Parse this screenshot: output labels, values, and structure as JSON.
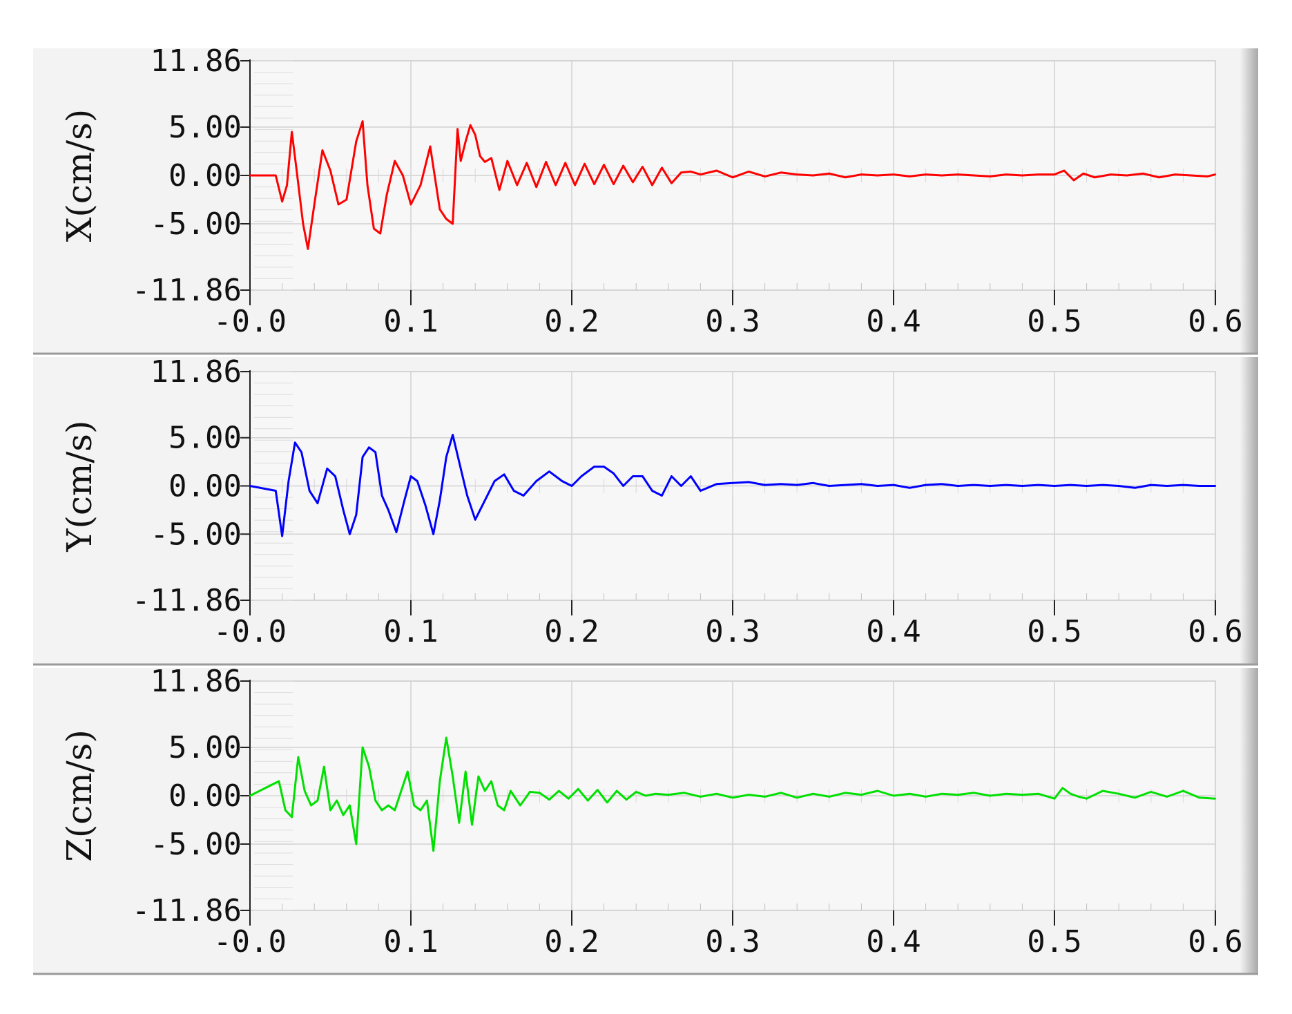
{
  "chart_data": [
    {
      "type": "line",
      "ylabel": "X(cm/s)",
      "color": "#ff0000",
      "xlim": [
        0.0,
        0.6
      ],
      "ylim": [
        -11.86,
        11.86
      ],
      "yticks": [
        11.86,
        5.0,
        0.0,
        -5.0,
        -11.86
      ],
      "ytick_labels": [
        "11.86",
        "5.00",
        "0.00",
        "-5.00",
        "-11.86"
      ],
      "xticks": [
        0.0,
        0.1,
        0.2,
        0.3,
        0.4,
        0.5,
        0.6
      ],
      "xtick_labels": [
        "-0.0",
        "0.1",
        "0.2",
        "0.3",
        "0.4",
        "0.5",
        "0.6"
      ],
      "grid": true,
      "x": [
        0,
        0.016,
        0.02,
        0.023,
        0.026,
        0.029,
        0.033,
        0.036,
        0.04,
        0.045,
        0.05,
        0.055,
        0.06,
        0.066,
        0.07,
        0.073,
        0.077,
        0.081,
        0.085,
        0.09,
        0.095,
        0.1,
        0.106,
        0.112,
        0.118,
        0.122,
        0.126,
        0.129,
        0.131,
        0.134,
        0.137,
        0.14,
        0.143,
        0.146,
        0.15,
        0.155,
        0.16,
        0.166,
        0.172,
        0.178,
        0.184,
        0.19,
        0.196,
        0.202,
        0.208,
        0.214,
        0.22,
        0.226,
        0.232,
        0.238,
        0.244,
        0.25,
        0.256,
        0.262,
        0.268,
        0.274,
        0.28,
        0.29,
        0.3,
        0.31,
        0.32,
        0.33,
        0.34,
        0.35,
        0.36,
        0.37,
        0.38,
        0.39,
        0.4,
        0.41,
        0.42,
        0.43,
        0.44,
        0.45,
        0.46,
        0.47,
        0.48,
        0.49,
        0.5,
        0.506,
        0.512,
        0.518,
        0.525,
        0.535,
        0.545,
        0.555,
        0.565,
        0.575,
        0.585,
        0.595,
        0.6
      ],
      "values": [
        0,
        0,
        -2.7,
        -1.0,
        4.5,
        0.5,
        -5.0,
        -7.6,
        -3.0,
        2.6,
        0.5,
        -3.0,
        -2.5,
        3.5,
        5.6,
        -1.0,
        -5.5,
        -6.0,
        -2.0,
        1.5,
        0.0,
        -3.0,
        -1.0,
        3.0,
        -3.5,
        -4.5,
        -5.0,
        4.8,
        1.5,
        3.5,
        5.2,
        4.2,
        2.0,
        1.4,
        1.8,
        -1.5,
        1.5,
        -1.0,
        1.3,
        -1.2,
        1.4,
        -1.0,
        1.3,
        -1.0,
        1.2,
        -0.9,
        1.1,
        -0.9,
        1.0,
        -0.7,
        0.9,
        -1.0,
        0.8,
        -0.8,
        0.3,
        0.4,
        0.1,
        0.5,
        -0.2,
        0.4,
        -0.1,
        0.3,
        0.1,
        0.0,
        0.2,
        -0.2,
        0.1,
        0.0,
        0.1,
        -0.1,
        0.1,
        0.0,
        0.1,
        0.0,
        -0.1,
        0.1,
        0.0,
        0.1,
        0.1,
        0.5,
        -0.5,
        0.2,
        -0.2,
        0.1,
        0.0,
        0.2,
        -0.2,
        0.1,
        0.0,
        -0.1,
        0.1
      ]
    },
    {
      "type": "line",
      "ylabel": "Y(cm/s)",
      "color": "#0000ff",
      "xlim": [
        0.0,
        0.6
      ],
      "ylim": [
        -11.86,
        11.86
      ],
      "yticks": [
        11.86,
        5.0,
        0.0,
        -5.0,
        -11.86
      ],
      "ytick_labels": [
        "11.86",
        "5.00",
        "0.00",
        "-5.00",
        "-11.86"
      ],
      "xticks": [
        0.0,
        0.1,
        0.2,
        0.3,
        0.4,
        0.5,
        0.6
      ],
      "xtick_labels": [
        "-0.0",
        "0.1",
        "0.2",
        "0.3",
        "0.4",
        "0.5",
        "0.6"
      ],
      "grid": true,
      "x": [
        0,
        0.016,
        0.02,
        0.024,
        0.028,
        0.032,
        0.037,
        0.042,
        0.048,
        0.053,
        0.058,
        0.062,
        0.066,
        0.07,
        0.074,
        0.078,
        0.082,
        0.086,
        0.091,
        0.096,
        0.1,
        0.104,
        0.109,
        0.114,
        0.118,
        0.122,
        0.126,
        0.13,
        0.135,
        0.14,
        0.146,
        0.152,
        0.158,
        0.164,
        0.17,
        0.178,
        0.186,
        0.194,
        0.2,
        0.206,
        0.214,
        0.22,
        0.226,
        0.232,
        0.238,
        0.244,
        0.25,
        0.256,
        0.262,
        0.268,
        0.274,
        0.28,
        0.29,
        0.3,
        0.31,
        0.32,
        0.33,
        0.34,
        0.35,
        0.36,
        0.37,
        0.38,
        0.39,
        0.4,
        0.41,
        0.42,
        0.43,
        0.44,
        0.45,
        0.46,
        0.47,
        0.48,
        0.49,
        0.5,
        0.51,
        0.52,
        0.53,
        0.54,
        0.55,
        0.56,
        0.57,
        0.58,
        0.59,
        0.6
      ],
      "values": [
        0,
        -0.5,
        -5.2,
        0.5,
        4.5,
        3.5,
        -0.5,
        -1.8,
        1.8,
        1.0,
        -2.5,
        -5.0,
        -3.0,
        3.0,
        4.0,
        3.5,
        -1.0,
        -2.5,
        -4.8,
        -1.5,
        1.0,
        0.5,
        -2.0,
        -5.0,
        -1.5,
        3.0,
        5.3,
        2.5,
        -1.0,
        -3.5,
        -1.5,
        0.5,
        1.2,
        -0.5,
        -1.0,
        0.5,
        1.5,
        0.5,
        0.0,
        1.0,
        2.0,
        2.0,
        1.3,
        0.0,
        1.0,
        1.0,
        -0.5,
        -1.0,
        1.0,
        0.0,
        1.0,
        -0.5,
        0.2,
        0.3,
        0.4,
        0.1,
        0.2,
        0.1,
        0.3,
        0.0,
        0.1,
        0.2,
        0.0,
        0.1,
        -0.2,
        0.1,
        0.2,
        0.0,
        0.1,
        0.0,
        0.1,
        0.0,
        0.1,
        0.0,
        0.1,
        0.0,
        0.1,
        0.0,
        -0.2,
        0.1,
        0.0,
        0.1,
        0.0,
        0.0
      ]
    },
    {
      "type": "line",
      "ylabel": "Z(cm/s)",
      "color": "#00e000",
      "xlim": [
        0.0,
        0.6
      ],
      "ylim": [
        -11.86,
        11.86
      ],
      "yticks": [
        11.86,
        5.0,
        0.0,
        -5.0,
        -11.86
      ],
      "ytick_labels": [
        "11.86",
        "5.00",
        "0.00",
        "-5.00",
        "-11.86"
      ],
      "xticks": [
        0.0,
        0.1,
        0.2,
        0.3,
        0.4,
        0.5,
        0.6
      ],
      "xtick_labels": [
        "-0.0",
        "0.1",
        "0.2",
        "0.3",
        "0.4",
        "0.5",
        "0.6"
      ],
      "grid": true,
      "x": [
        0,
        0.018,
        0.022,
        0.026,
        0.03,
        0.034,
        0.038,
        0.042,
        0.046,
        0.05,
        0.054,
        0.058,
        0.062,
        0.066,
        0.07,
        0.074,
        0.078,
        0.082,
        0.086,
        0.09,
        0.094,
        0.098,
        0.102,
        0.106,
        0.11,
        0.114,
        0.118,
        0.122,
        0.126,
        0.13,
        0.134,
        0.138,
        0.142,
        0.146,
        0.15,
        0.154,
        0.158,
        0.162,
        0.168,
        0.174,
        0.18,
        0.186,
        0.192,
        0.198,
        0.204,
        0.21,
        0.216,
        0.222,
        0.228,
        0.234,
        0.24,
        0.246,
        0.252,
        0.26,
        0.27,
        0.28,
        0.29,
        0.3,
        0.31,
        0.32,
        0.33,
        0.34,
        0.35,
        0.36,
        0.37,
        0.38,
        0.39,
        0.4,
        0.41,
        0.42,
        0.43,
        0.44,
        0.45,
        0.46,
        0.47,
        0.48,
        0.49,
        0.5,
        0.505,
        0.51,
        0.515,
        0.52,
        0.53,
        0.54,
        0.55,
        0.56,
        0.57,
        0.58,
        0.59,
        0.6
      ],
      "values": [
        0,
        1.5,
        -1.5,
        -2.2,
        4.0,
        0.5,
        -1.0,
        -0.5,
        3.0,
        -1.5,
        -0.5,
        -2.0,
        -1.0,
        -5.0,
        5.0,
        3.0,
        -0.5,
        -1.5,
        -1.0,
        -1.5,
        0.5,
        2.5,
        -1.0,
        -1.5,
        -0.5,
        -5.7,
        1.5,
        6.0,
        2.0,
        -2.8,
        2.5,
        -3.0,
        2.0,
        0.5,
        1.5,
        -1.0,
        -1.5,
        0.5,
        -1.0,
        0.4,
        0.3,
        -0.4,
        0.5,
        -0.3,
        0.7,
        -0.5,
        0.6,
        -0.7,
        0.5,
        -0.4,
        0.4,
        0.0,
        0.2,
        0.1,
        0.3,
        -0.1,
        0.2,
        -0.2,
        0.1,
        -0.1,
        0.3,
        -0.2,
        0.2,
        -0.1,
        0.3,
        0.1,
        0.5,
        0.0,
        0.2,
        -0.1,
        0.2,
        0.1,
        0.3,
        0.0,
        0.2,
        0.1,
        0.2,
        -0.3,
        0.8,
        0.2,
        -0.1,
        -0.3,
        0.5,
        0.2,
        -0.2,
        0.4,
        -0.1,
        0.5,
        -0.2,
        -0.3
      ]
    }
  ]
}
